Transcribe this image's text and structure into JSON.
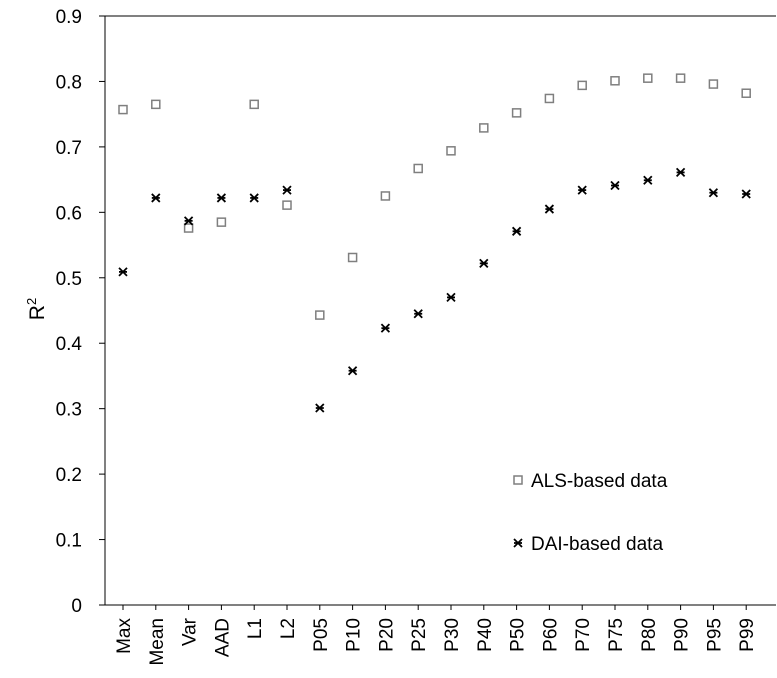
{
  "chart_data": {
    "type": "scatter",
    "title": "",
    "xlabel": "",
    "ylabel": "R",
    "ylabel_superscript": "2",
    "ylim": [
      0,
      0.9
    ],
    "y_ticks": [
      "0",
      "0.1",
      "0.2",
      "0.3",
      "0.4",
      "0.5",
      "0.6",
      "0.7",
      "0.8",
      "0.9"
    ],
    "grid": false,
    "legend_position": "bottom-right",
    "categories": [
      "Max",
      "Mean",
      "Var",
      "AAD",
      "L1",
      "L2",
      "P05",
      "P10",
      "P20",
      "P25",
      "P30",
      "P40",
      "P50",
      "P60",
      "P70",
      "P75",
      "P80",
      "P90",
      "P95",
      "P99"
    ],
    "series": [
      {
        "name": "ALS-based data",
        "marker": "open-square",
        "color": "#7f7f7f",
        "values": [
          0.757,
          0.765,
          0.576,
          0.585,
          0.765,
          0.611,
          0.443,
          0.531,
          0.625,
          0.667,
          0.694,
          0.729,
          0.752,
          0.774,
          0.794,
          0.801,
          0.805,
          0.805,
          0.796,
          0.782
        ]
      },
      {
        "name": "DAI-based data",
        "marker": "asterisk",
        "color": "#000000",
        "values": [
          0.509,
          0.622,
          0.587,
          0.622,
          0.622,
          0.634,
          0.301,
          0.358,
          0.423,
          0.445,
          0.47,
          0.522,
          0.571,
          0.605,
          0.634,
          0.641,
          0.649,
          0.661,
          0.63,
          0.628
        ]
      }
    ]
  }
}
